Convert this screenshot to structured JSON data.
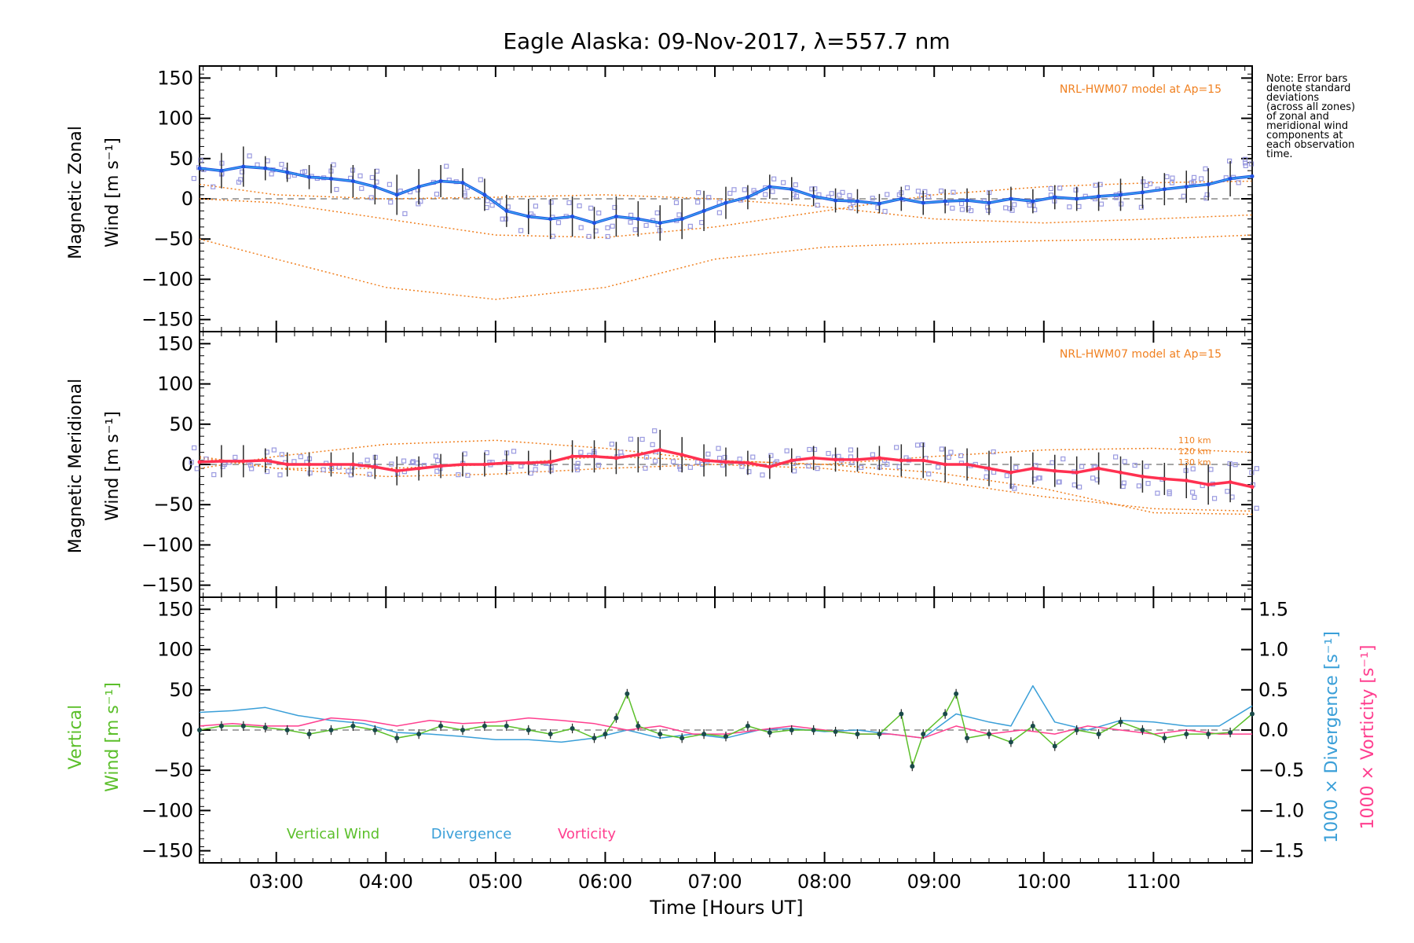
{
  "title": "Eagle Alaska: 09-Nov-2017, λ=557.7 nm",
  "x_axis": {
    "label": "Time [Hours UT]",
    "ticks": [
      "03:00",
      "04:00",
      "05:00",
      "06:00",
      "07:00",
      "08:00",
      "09:00",
      "10:00",
      "11:00"
    ]
  },
  "note": [
    "Note: Error bars",
    "denote standard",
    "deviations",
    "(across all zones)",
    "of zonal and",
    "meridional wind",
    "components at",
    "each observation",
    "time."
  ],
  "model_label": "NRL-HWM07 model at Ap=15",
  "model_levels": [
    "110 km",
    "120 km",
    "130 km"
  ],
  "panel_labels": {
    "zonal": [
      "Magnetic Zonal",
      "Wind [m s⁻¹]"
    ],
    "meridional": [
      "Magnetic Meridional",
      "Wind [m s⁻¹]"
    ],
    "vertical": [
      "Vertical",
      "Wind [m s⁻¹]"
    ],
    "right_divergence": "1000 × Divergence [s⁻¹]",
    "right_vorticity": "1000 × Vorticity [s⁻¹]"
  },
  "legend": [
    "Vertical Wind",
    "Divergence",
    "Vorticity"
  ],
  "colors": {
    "zonal": "#1f4fe0",
    "zonal_light": "#3aa7f0",
    "meridional": "#ff3050",
    "model": "#f08020",
    "vertical": "#5bbf2a",
    "divergence": "#3a9fd8",
    "vorticity": "#ff3f8f",
    "zone_points": "#9a9ae0"
  },
  "chart_data": [
    {
      "type": "line",
      "name": "zonal",
      "xlim": [
        2.3,
        11.9
      ],
      "ylim": [
        -165,
        165
      ],
      "yticks": [
        -150,
        -100,
        -50,
        0,
        50,
        100,
        150
      ],
      "x": [
        2.3,
        2.5,
        2.7,
        2.9,
        3.1,
        3.3,
        3.5,
        3.7,
        3.9,
        4.1,
        4.3,
        4.5,
        4.7,
        4.9,
        5.1,
        5.3,
        5.5,
        5.7,
        5.9,
        6.1,
        6.3,
        6.5,
        6.7,
        6.9,
        7.1,
        7.3,
        7.5,
        7.7,
        7.9,
        8.1,
        8.3,
        8.5,
        8.7,
        8.9,
        9.1,
        9.3,
        9.5,
        9.7,
        9.9,
        10.1,
        10.3,
        10.5,
        10.7,
        10.9,
        11.1,
        11.3,
        11.5,
        11.7,
        11.9
      ],
      "y": [
        38,
        35,
        40,
        38,
        33,
        27,
        25,
        22,
        15,
        5,
        15,
        22,
        20,
        5,
        -15,
        -22,
        -25,
        -22,
        -30,
        -22,
        -25,
        -30,
        -25,
        -15,
        -5,
        2,
        15,
        12,
        3,
        -2,
        -3,
        -6,
        0,
        -5,
        -3,
        -2,
        -5,
        0,
        -3,
        2,
        0,
        3,
        5,
        8,
        12,
        15,
        18,
        25,
        28
      ],
      "errors": [
        20,
        22,
        25,
        15,
        12,
        15,
        18,
        20,
        22,
        25,
        22,
        20,
        18,
        20,
        20,
        22,
        25,
        25,
        20,
        25,
        22,
        22,
        25,
        25,
        20,
        15,
        15,
        15,
        12,
        15,
        15,
        12,
        15,
        15,
        15,
        15,
        15,
        15,
        15,
        15,
        15,
        18,
        20,
        20,
        20,
        20,
        20,
        22,
        22
      ]
    },
    {
      "type": "line",
      "name": "zonal_model_110km",
      "x": [
        2.3,
        3.0,
        4.0,
        5.0,
        6.0,
        7.0,
        8.0,
        9.0,
        10.0,
        11.0,
        11.9
      ],
      "y": [
        0,
        -5,
        -25,
        -45,
        -48,
        -35,
        -15,
        5,
        15,
        20,
        22
      ]
    },
    {
      "type": "line",
      "name": "zonal_model_120km",
      "x": [
        2.3,
        3.0,
        4.0,
        5.0,
        6.0,
        7.0,
        8.0,
        9.0,
        10.0,
        11.0,
        11.9
      ],
      "y": [
        -50,
        -75,
        -110,
        -125,
        -110,
        -75,
        -60,
        -55,
        -52,
        -50,
        -45
      ]
    },
    {
      "type": "line",
      "name": "zonal_model_130km",
      "x": [
        2.3,
        3.0,
        4.0,
        5.0,
        6.0,
        7.0,
        8.0,
        9.0,
        10.0,
        11.0,
        11.9
      ],
      "y": [
        18,
        5,
        0,
        2,
        5,
        0,
        -10,
        -25,
        -30,
        -25,
        -20
      ]
    },
    {
      "type": "line",
      "name": "meridional",
      "xlim": [
        2.3,
        11.9
      ],
      "ylim": [
        -165,
        165
      ],
      "yticks": [
        -150,
        -100,
        -50,
        0,
        50,
        100,
        150
      ],
      "x": [
        2.3,
        2.5,
        2.7,
        2.9,
        3.1,
        3.3,
        3.5,
        3.7,
        3.9,
        4.1,
        4.3,
        4.5,
        4.7,
        4.9,
        5.1,
        5.3,
        5.5,
        5.7,
        5.9,
        6.1,
        6.3,
        6.5,
        6.7,
        6.9,
        7.1,
        7.3,
        7.5,
        7.7,
        7.9,
        8.1,
        8.3,
        8.5,
        8.7,
        8.9,
        9.1,
        9.3,
        9.5,
        9.7,
        9.9,
        10.1,
        10.3,
        10.5,
        10.7,
        10.9,
        11.1,
        11.3,
        11.5,
        11.7,
        11.9
      ],
      "y": [
        3,
        4,
        4,
        5,
        0,
        0,
        0,
        0,
        -3,
        -8,
        -5,
        -2,
        0,
        0,
        2,
        2,
        3,
        10,
        10,
        8,
        12,
        18,
        12,
        5,
        3,
        2,
        -3,
        5,
        8,
        6,
        6,
        8,
        5,
        5,
        0,
        0,
        -5,
        -10,
        -5,
        -8,
        -10,
        -5,
        -10,
        -15,
        -18,
        -20,
        -25,
        -22,
        -28
      ],
      "errors": [
        20,
        20,
        20,
        15,
        15,
        15,
        15,
        15,
        15,
        18,
        15,
        15,
        15,
        15,
        15,
        15,
        15,
        20,
        20,
        20,
        22,
        25,
        22,
        20,
        18,
        15,
        15,
        15,
        15,
        15,
        15,
        15,
        20,
        22,
        22,
        20,
        22,
        20,
        20,
        20,
        20,
        20,
        20,
        20,
        20,
        22,
        25,
        25,
        28
      ]
    },
    {
      "type": "line",
      "name": "meridional_model_110km",
      "x": [
        2.3,
        3.0,
        4.0,
        5.0,
        6.0,
        7.0,
        8.0,
        9.0,
        10.0,
        11.0,
        11.9
      ],
      "y": [
        8,
        -5,
        -15,
        -12,
        -5,
        0,
        -5,
        -20,
        -40,
        -55,
        -58
      ]
    },
    {
      "type": "line",
      "name": "meridional_model_120km",
      "x": [
        2.3,
        3.0,
        4.0,
        5.0,
        6.0,
        7.0,
        8.0,
        9.0,
        10.0,
        11.0,
        11.9
      ],
      "y": [
        -5,
        10,
        25,
        30,
        20,
        5,
        0,
        10,
        18,
        20,
        15
      ]
    },
    {
      "type": "line",
      "name": "meridional_model_130km",
      "x": [
        2.3,
        3.0,
        4.0,
        5.0,
        6.0,
        7.0,
        8.0,
        9.0,
        10.0,
        11.0,
        11.9
      ],
      "y": [
        10,
        -5,
        -5,
        0,
        10,
        5,
        0,
        -10,
        -30,
        -60,
        -62
      ]
    },
    {
      "type": "line",
      "name": "Vertical Wind",
      "xlim": [
        2.3,
        11.9
      ],
      "ylim": [
        -165,
        165
      ],
      "yticks": [
        -150,
        -100,
        -50,
        0,
        50,
        100,
        150
      ],
      "x": [
        2.3,
        2.5,
        2.7,
        2.9,
        3.1,
        3.3,
        3.5,
        3.7,
        3.9,
        4.1,
        4.3,
        4.5,
        4.7,
        4.9,
        5.1,
        5.3,
        5.5,
        5.7,
        5.9,
        6.0,
        6.1,
        6.2,
        6.3,
        6.5,
        6.7,
        6.9,
        7.1,
        7.3,
        7.5,
        7.7,
        7.9,
        8.1,
        8.3,
        8.5,
        8.7,
        8.8,
        8.9,
        9.1,
        9.2,
        9.3,
        9.5,
        9.7,
        9.9,
        10.1,
        10.3,
        10.5,
        10.7,
        10.9,
        11.1,
        11.3,
        11.5,
        11.7,
        11.9
      ],
      "y": [
        0,
        5,
        5,
        3,
        0,
        -5,
        0,
        5,
        0,
        -10,
        -5,
        5,
        0,
        5,
        5,
        0,
        -5,
        2,
        -10,
        -5,
        15,
        45,
        5,
        -5,
        -10,
        -5,
        -8,
        5,
        -3,
        0,
        0,
        -2,
        -5,
        -5,
        20,
        -45,
        -5,
        20,
        45,
        -10,
        -5,
        -15,
        5,
        -20,
        0,
        -5,
        10,
        0,
        -10,
        -5,
        -5,
        -3,
        20
      ]
    },
    {
      "type": "line",
      "name": "Divergence",
      "xlim": [
        2.3,
        11.9
      ],
      "ylim": [
        -1.65,
        1.65
      ],
      "yticks": [
        -1.5,
        -1.0,
        -0.5,
        0.0,
        0.5,
        1.0,
        1.5
      ],
      "x": [
        2.3,
        2.6,
        2.9,
        3.2,
        3.5,
        3.8,
        4.1,
        4.4,
        4.7,
        5.0,
        5.3,
        5.6,
        5.9,
        6.2,
        6.5,
        6.8,
        7.1,
        7.4,
        7.7,
        8.0,
        8.3,
        8.6,
        8.9,
        9.2,
        9.5,
        9.7,
        9.9,
        10.1,
        10.4,
        10.7,
        11.0,
        11.3,
        11.6,
        11.9
      ],
      "y": [
        0.22,
        0.24,
        0.28,
        0.18,
        0.12,
        0.08,
        -0.03,
        -0.05,
        -0.08,
        -0.12,
        -0.12,
        -0.15,
        -0.1,
        0.0,
        -0.1,
        -0.05,
        -0.1,
        0.0,
        0.02,
        -0.02,
        0.0,
        -0.05,
        -0.1,
        0.2,
        0.1,
        0.05,
        0.55,
        0.1,
        0.0,
        0.12,
        0.1,
        0.05,
        0.05,
        0.3
      ]
    },
    {
      "type": "line",
      "name": "Vorticity",
      "xlim": [
        2.3,
        11.9
      ],
      "ylim": [
        -1.65,
        1.65
      ],
      "x": [
        2.3,
        2.6,
        2.9,
        3.2,
        3.5,
        3.8,
        4.1,
        4.4,
        4.7,
        5.0,
        5.3,
        5.6,
        5.9,
        6.2,
        6.5,
        6.8,
        7.1,
        7.4,
        7.7,
        8.0,
        8.3,
        8.6,
        8.9,
        9.2,
        9.5,
        9.8,
        10.1,
        10.4,
        10.7,
        11.0,
        11.3,
        11.6,
        11.9
      ],
      "y": [
        0.05,
        0.08,
        0.05,
        0.05,
        0.15,
        0.12,
        0.05,
        0.12,
        0.08,
        0.1,
        0.15,
        0.12,
        0.08,
        0.0,
        0.05,
        -0.05,
        -0.05,
        0.0,
        0.05,
        0.0,
        -0.05,
        -0.05,
        -0.1,
        0.05,
        -0.05,
        0.0,
        -0.05,
        0.05,
        0.0,
        -0.05,
        0.0,
        -0.05,
        -0.05
      ]
    }
  ]
}
